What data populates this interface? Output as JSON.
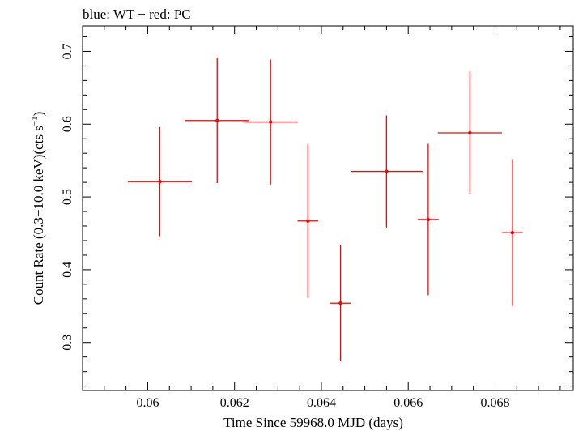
{
  "chart_data": {
    "type": "scatter",
    "title": "blue: WT − red: PC",
    "xlabel": "Time Since 59968.0 MJD (days)",
    "ylabel_main": "Count Rate (0.3−10.0 keV)(cts s",
    "ylabel_sup": "−1",
    "ylabel_end": ")",
    "xlim": [
      0.0585,
      0.0698
    ],
    "ylim": [
      0.234,
      0.735
    ],
    "xticks": [
      0.06,
      0.062,
      0.064,
      0.066,
      0.068
    ],
    "xtick_labels": [
      "0.06",
      "0.062",
      "0.064",
      "0.066",
      "0.068"
    ],
    "yticks": [
      0.3,
      0.4,
      0.5,
      0.6,
      0.7
    ],
    "ytick_labels": [
      "0.3",
      "0.4",
      "0.5",
      "0.6",
      "0.7"
    ],
    "grid": false,
    "series": [
      {
        "name": "PC",
        "color": "#ff0000",
        "points": [
          {
            "x": 0.06028,
            "y": 0.521,
            "xerr": 0.00074,
            "yerr_lo": 0.075,
            "yerr_hi": 0.075
          },
          {
            "x": 0.0616,
            "y": 0.605,
            "xerr": 0.00074,
            "yerr_lo": 0.086,
            "yerr_hi": 0.086
          },
          {
            "x": 0.06283,
            "y": 0.603,
            "xerr": 0.00062,
            "yerr_lo": 0.086,
            "yerr_hi": 0.086
          },
          {
            "x": 0.06369,
            "y": 0.467,
            "xerr": 0.00024,
            "yerr_lo": 0.106,
            "yerr_hi": 0.106
          },
          {
            "x": 0.06444,
            "y": 0.354,
            "xerr": 0.00024,
            "yerr_lo": 0.08,
            "yerr_hi": 0.08
          },
          {
            "x": 0.0655,
            "y": 0.535,
            "xerr": 0.00083,
            "yerr_lo": 0.077,
            "yerr_hi": 0.077
          },
          {
            "x": 0.06646,
            "y": 0.469,
            "xerr": 0.00024,
            "yerr_lo": 0.104,
            "yerr_hi": 0.104
          },
          {
            "x": 0.06742,
            "y": 0.588,
            "xerr": 0.00074,
            "yerr_lo": 0.084,
            "yerr_hi": 0.084
          },
          {
            "x": 0.0684,
            "y": 0.451,
            "xerr": 0.00024,
            "yerr_lo": 0.101,
            "yerr_hi": 0.101
          }
        ]
      }
    ]
  }
}
